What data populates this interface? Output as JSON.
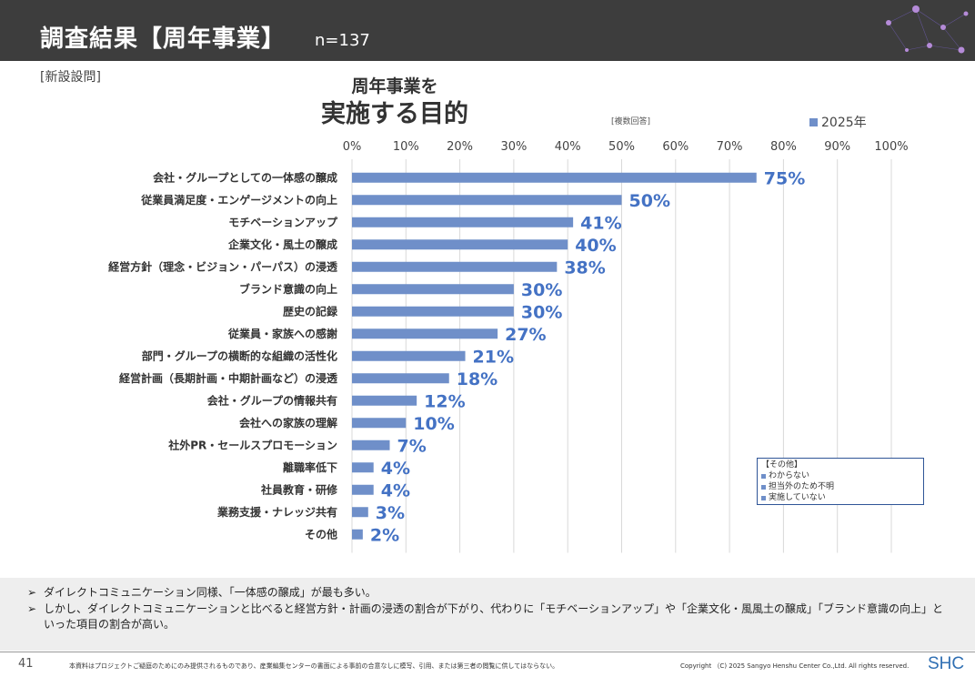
{
  "header": {
    "title": "調査結果【周年事業】",
    "n": "n=137"
  },
  "tag": "[新設設問]",
  "chart_title_line1": "周年事業を",
  "chart_title_line2": "実施する目的",
  "multi_answer_note": "[複数回答]",
  "other_box": {
    "title": "【その他】",
    "items": [
      "わからない",
      "担当外のため不明",
      "実施していない"
    ]
  },
  "comments": [
    "ダイレクトコミュニケーション同様、「一体感の醸成」が最も多い。",
    "しかし、ダイレクトコミュニケーションと比べると経営方針・計画の浸透の割合が下がり、代わりに「モチベーションアップ」や「企業文化・風風土の醸成」「ブランド意識の向上」といった項目の割合が高い。"
  ],
  "footer": {
    "page_number": "41",
    "disclaimer": "本資料はプロジェクトご疑庭のためにのみ提供されるものであり、産業編集センターの書面による事前の合意なしに模写、引用、または第三者の閲覧に供してはならない。",
    "copyright": "Copyright （C) 2025  Sangyo Henshu Center Co.,Ltd. All rights reserved.",
    "logo": "SHC"
  },
  "colors": {
    "bar": "#6f8fc9",
    "label": "#4472c4",
    "header_bg": "#3d3d3d"
  },
  "chart_data": {
    "type": "bar",
    "orientation": "horizontal",
    "categories": [
      "会社・グループとしての一体感の醸成",
      "従業員満足度・エンゲージメントの向上",
      "モチベーションアップ",
      "企業文化・風土の醸成",
      "経営方針（理念・ビジョン・パーパス）の浸透",
      "ブランド意識の向上",
      "歴史の記録",
      "従業員・家族への感謝",
      "部門・グループの横断的な組織の活性化",
      "経営計画（長期計画・中期計画など）の浸透",
      "会社・グループの情報共有",
      "会社への家族の理解",
      "社外PR・セールスプロモーション",
      "離職率低下",
      "社員教育・研修",
      "業務支援・ナレッジ共有",
      "その他"
    ],
    "series": [
      {
        "name": "2025年",
        "values": [
          75,
          50,
          41,
          40,
          38,
          30,
          30,
          27,
          21,
          18,
          12,
          10,
          7,
          4,
          4,
          3,
          2
        ],
        "labels": [
          "75%",
          "50%",
          "41%",
          "40%",
          "38%",
          "30%",
          "30%",
          "27%",
          "21%",
          "18%",
          "12%",
          "10%",
          "7%",
          "4%",
          "4%",
          "3%",
          "2%"
        ]
      }
    ],
    "xlim": [
      0,
      100
    ],
    "xticks": [
      "0%",
      "10%",
      "20%",
      "30%",
      "40%",
      "50%",
      "60%",
      "70%",
      "80%",
      "90%",
      "100%"
    ],
    "grid": true,
    "legend": "top-right"
  }
}
